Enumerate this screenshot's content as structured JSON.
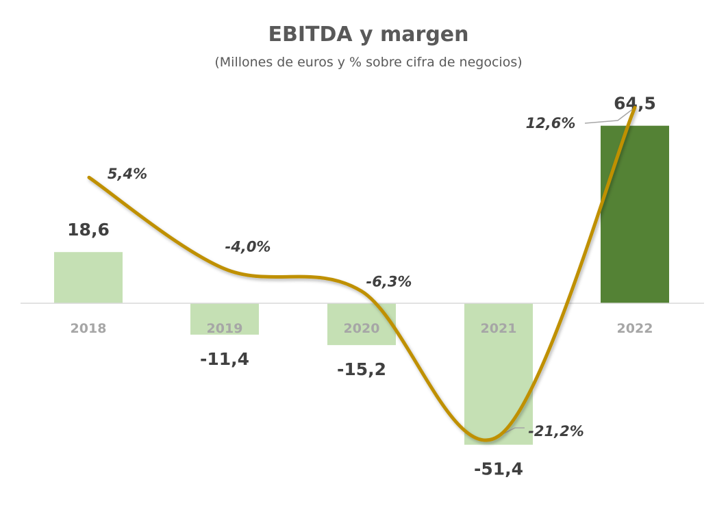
{
  "chart_data": {
    "type": "bar",
    "title": "EBITDA y margen",
    "subtitle": "(Millones de euros y % sobre cifra de negocios)",
    "categories": [
      "2018",
      "2019",
      "2020",
      "2021",
      "2022"
    ],
    "series": [
      {
        "name": "EBITDA",
        "type": "bar",
        "values": [
          18.6,
          -11.4,
          -15.2,
          -51.4,
          64.5
        ],
        "labels": [
          "18,6",
          "-11,4",
          "-15,2",
          "-51,4",
          "64,5"
        ]
      },
      {
        "name": "Margen",
        "type": "line",
        "values": [
          5.4,
          -4.0,
          -6.3,
          -21.2,
          12.6
        ],
        "labels": [
          "5,4%",
          "-4,0%",
          "-6,3%",
          "-21,2%",
          "12,6%"
        ]
      }
    ],
    "colors": {
      "bar": "#c5e0b4",
      "bar_highlight": "#548235",
      "line": "#bf9000",
      "axis": "#d9d9d9",
      "leader": "#a6a6a6"
    },
    "bar_axis": {
      "range": [
        -51.4,
        64.5
      ]
    },
    "line_axis": {
      "range": [
        -21.2,
        12.6
      ]
    },
    "highlight_index": 4,
    "legend": "none",
    "grid": false
  }
}
